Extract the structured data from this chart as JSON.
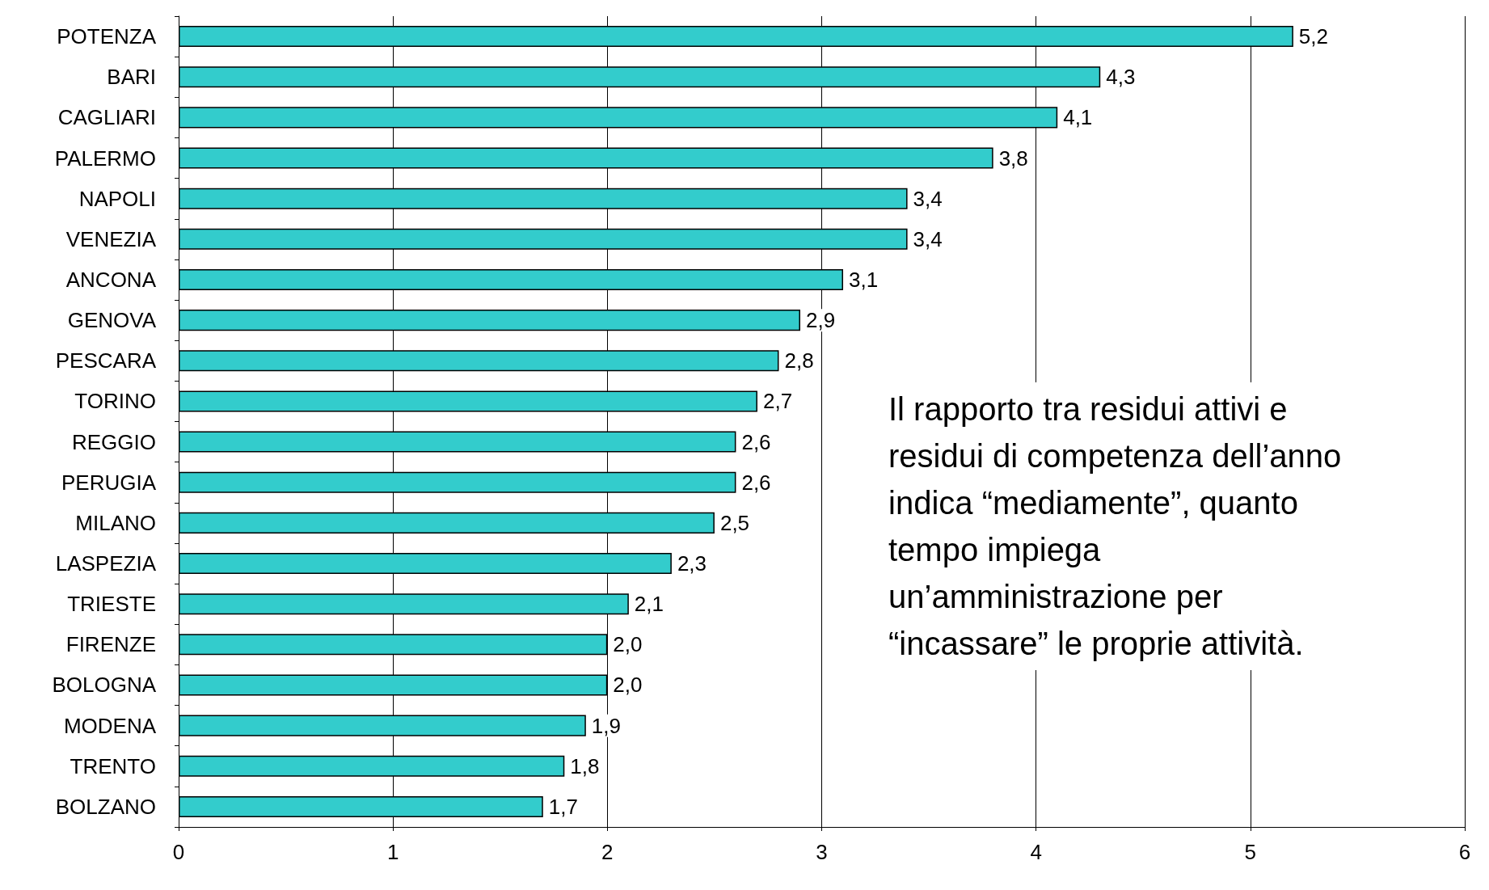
{
  "chart_data": {
    "type": "bar",
    "orientation": "horizontal",
    "categories": [
      "POTENZA",
      "BARI",
      "CAGLIARI",
      "PALERMO",
      "NAPOLI",
      "VENEZIA",
      "ANCONA",
      "GENOVA",
      "PESCARA",
      "TORINO",
      "REGGIO",
      "PERUGIA",
      "MILANO",
      "LASPEZIA",
      "TRIESTE",
      "FIRENZE",
      "BOLOGNA",
      "MODENA",
      "TRENTO",
      "BOLZANO"
    ],
    "values": [
      5.2,
      4.3,
      4.1,
      3.8,
      3.4,
      3.4,
      3.1,
      2.9,
      2.8,
      2.7,
      2.6,
      2.6,
      2.5,
      2.3,
      2.1,
      2.0,
      2.0,
      1.9,
      1.8,
      1.7
    ],
    "color": "#33cccc",
    "xlim": [
      0,
      6
    ],
    "xticks": [
      0,
      1,
      2,
      3,
      4,
      5,
      6
    ],
    "value_labels": [
      "5,2",
      "4,3",
      "4,1",
      "3,8",
      "3,4",
      "3,4",
      "3,1",
      "2,9",
      "2,8",
      "2,7",
      "2,6",
      "2,6",
      "2,5",
      "2,3",
      "2,1",
      "2,0",
      "2,0",
      "1,9",
      "1,8",
      "1,7"
    ],
    "grid": "x",
    "annotations": [
      "Il rapporto tra residui attivi e residui di competenza dell’anno indica “mediamente”, quanto tempo impiega un’amministrazione per “incassare” le proprie attività."
    ]
  }
}
